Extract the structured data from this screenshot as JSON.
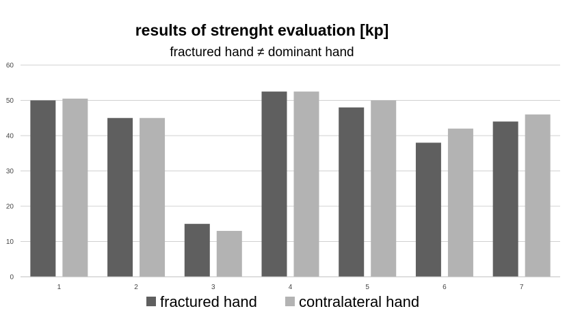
{
  "chart_data": {
    "type": "bar",
    "title": "results of strenght evaluation [kp]",
    "subtitle": "fractured hand ≠ dominant hand",
    "categories": [
      "1",
      "2",
      "3",
      "4",
      "5",
      "6",
      "7"
    ],
    "series": [
      {
        "name": "fractured hand",
        "color": "#5f5f5f",
        "values": [
          50,
          45,
          15,
          52.5,
          48,
          38,
          44
        ]
      },
      {
        "name": "contralateral hand",
        "color": "#b3b3b3",
        "values": [
          50.5,
          45,
          13,
          52.5,
          50,
          42,
          46
        ]
      }
    ],
    "y_ticks": [
      "0",
      "10",
      "20",
      "30",
      "40",
      "50",
      "60"
    ],
    "ylim": [
      0,
      60
    ],
    "grid": true,
    "legend_position": "bottom"
  }
}
